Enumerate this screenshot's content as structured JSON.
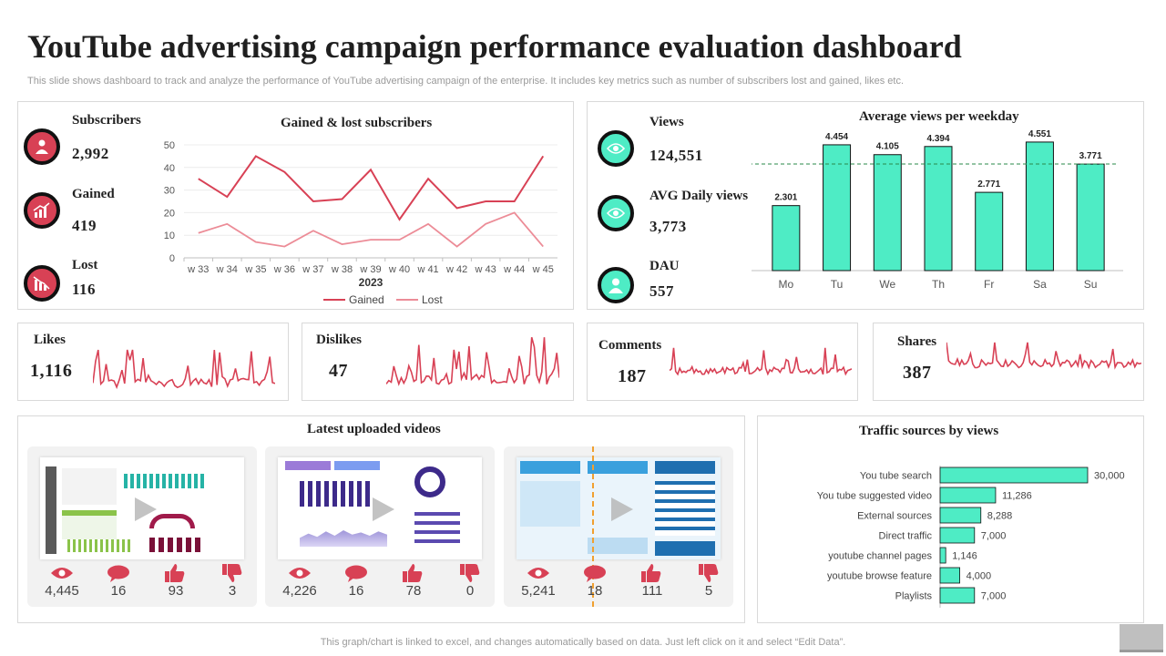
{
  "title": "YouTube advertising campaign performance evaluation dashboard",
  "subtitle": "This slide shows dashboard to track and analyze the performance of YouTube advertising campaign of the enterprise. It includes key metrics such as number of subscribers lost and gained, likes etc.",
  "subscribers_panel": {
    "metrics": [
      {
        "label": "Subscribers",
        "value": "2,992",
        "icon": "subscriber-icon"
      },
      {
        "label": "Gained",
        "value": "419",
        "icon": "growth-chart-icon"
      },
      {
        "label": "Lost",
        "value": "116",
        "icon": "decline-chart-icon"
      }
    ]
  },
  "views_panel": {
    "metrics": [
      {
        "label": "Views",
        "value": "124,551",
        "icon": "eye-icon"
      },
      {
        "label": "AVG Daily views",
        "value": "3,773",
        "icon": "eye-icon"
      },
      {
        "label": "DAU",
        "value": "557",
        "icon": "user-icon"
      }
    ]
  },
  "engagement": [
    {
      "label": "Likes",
      "value": "1,116"
    },
    {
      "label": "Dislikes",
      "value": "47"
    },
    {
      "label": "Comments",
      "value": "187"
    },
    {
      "label": "Shares",
      "value": "387"
    }
  ],
  "videos": {
    "title": "Latest uploaded videos",
    "items": [
      {
        "views": "4,445",
        "comments": "16",
        "likes": "93",
        "dislikes": "3"
      },
      {
        "views": "4,226",
        "comments": "16",
        "likes": "78",
        "dislikes": "0"
      },
      {
        "views": "5,241",
        "comments": "18",
        "likes": "111",
        "dislikes": "5"
      }
    ]
  },
  "footer": "This graph/chart is linked to excel,  and changes automatically based on data. Just left click on it and select “Edit Data”.",
  "colors": {
    "red": "#d84155",
    "pink": "#ec8c97",
    "teal": "#4eecc5"
  },
  "chart_data": [
    {
      "type": "line",
      "title": "Gained & lost subscribers",
      "xlabel": "2023",
      "categories": [
        "w 33",
        "w 34",
        "w 35",
        "w 36",
        "w 37",
        "w 38",
        "w 39",
        "w 40",
        "w 41",
        "w 42",
        "w 43",
        "w 44",
        "w 45"
      ],
      "ylim": [
        0,
        50
      ],
      "yticks": [
        "0",
        "10",
        "20",
        "30",
        "40",
        "50"
      ],
      "series": [
        {
          "name": "Gained",
          "values": [
            35,
            27,
            45,
            38,
            25,
            26,
            39,
            17,
            35,
            22,
            25,
            25,
            45
          ]
        },
        {
          "name": "Lost",
          "values": [
            11,
            15,
            7,
            5,
            12,
            6,
            8,
            8,
            15,
            5,
            15,
            20,
            5
          ]
        }
      ]
    },
    {
      "type": "bar",
      "title": "Average views per weekday",
      "categories": [
        "Mo",
        "Tu",
        "We",
        "Th",
        "Fr",
        "Sa",
        "Su"
      ],
      "values": [
        2.301,
        4.454,
        4.105,
        4.394,
        2.771,
        4.551,
        3.771
      ],
      "labels": [
        "2.301",
        "4.454",
        "4.105",
        "4.394",
        "2.771",
        "4.551",
        "3.771"
      ],
      "average": 3.773,
      "ylim": [
        0,
        5
      ]
    },
    {
      "type": "bar",
      "title": "Traffic sources by views",
      "orientation": "horizontal",
      "categories": [
        "You tube search",
        "You tube suggested video",
        "External sources",
        "Direct traffic",
        "youtube channel pages",
        "youtube browse feature",
        "Playlists"
      ],
      "values": [
        30000,
        11286,
        8288,
        7000,
        1146,
        4000,
        7000
      ],
      "labels": [
        "30,000",
        "11,286",
        "8,288",
        "7,000",
        "1,146",
        "4,000",
        "7,000"
      ],
      "xlim": [
        0,
        30000
      ]
    }
  ]
}
